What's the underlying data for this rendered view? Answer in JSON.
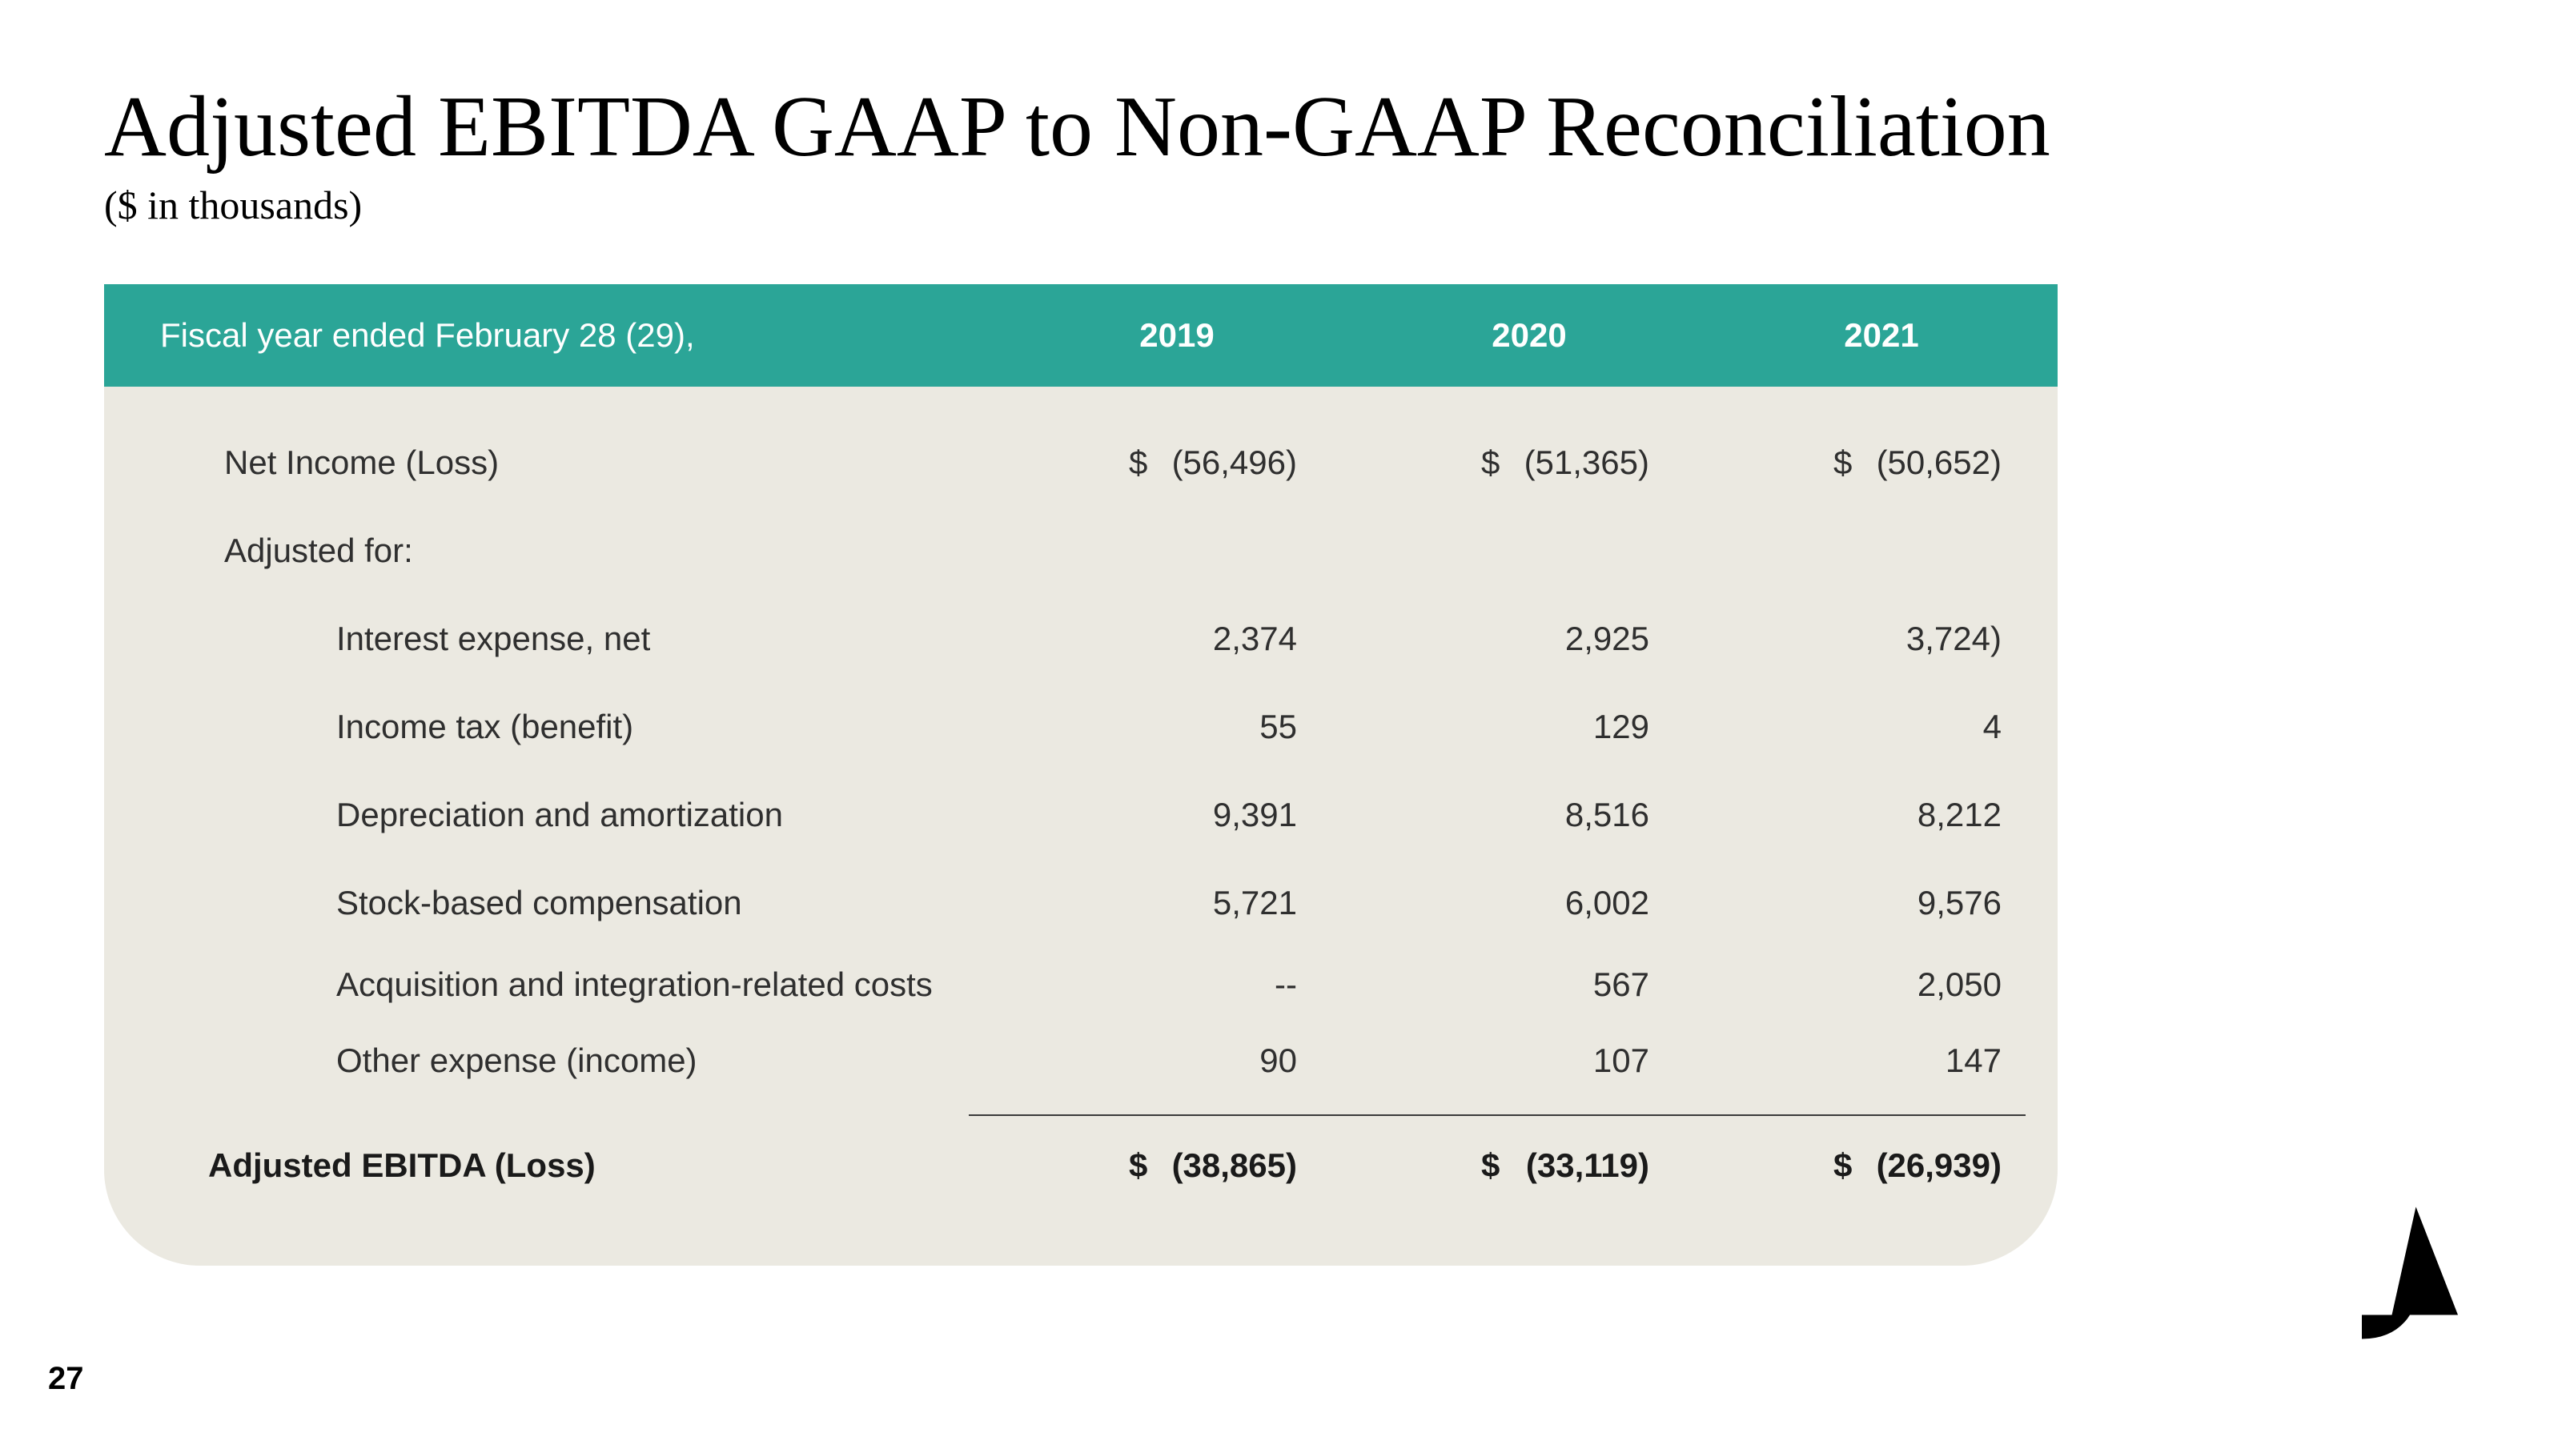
{
  "slide": {
    "title": "Adjusted EBITDA GAAP to Non-GAAP Reconciliation",
    "subtitle": "($ in thousands)",
    "page_number": "27"
  },
  "table": {
    "header_bg": "#2ba597",
    "body_bg": "#ebe9e1",
    "header_label": "Fiscal year ended February 28 (29),",
    "years": [
      "2019",
      "2020",
      "2021"
    ],
    "rows": [
      {
        "label": "Net Income (Loss)",
        "indent": 1,
        "dollar": true,
        "values": [
          "(56,496)",
          "(51,365)",
          "(50,652)"
        ]
      },
      {
        "label": "Adjusted for:",
        "indent": 1,
        "values": [
          "",
          "",
          ""
        ]
      },
      {
        "label": "Interest expense, net",
        "indent": 2,
        "values": [
          "2,374",
          "2,925",
          "3,724)"
        ]
      },
      {
        "label": "Income tax (benefit)",
        "indent": 2,
        "values": [
          "55",
          "129",
          "4"
        ]
      },
      {
        "label": "Depreciation and amortization",
        "indent": 2,
        "values": [
          "9,391",
          "8,516",
          "8,212"
        ]
      },
      {
        "label": "Stock-based compensation",
        "indent": 2,
        "values": [
          "5,721",
          "6,002",
          "9,576"
        ]
      },
      {
        "label": "Acquisition and integration-related costs",
        "indent": 2,
        "values": [
          "--",
          "567",
          "2,050"
        ]
      },
      {
        "label": "Other expense (income)",
        "indent": 2,
        "values": [
          "90",
          "107",
          "147"
        ]
      }
    ],
    "total": {
      "label": "Adjusted EBITDA (Loss)",
      "dollar": true,
      "values": [
        "(38,865)",
        "(33,119)",
        "(26,939)"
      ]
    }
  },
  "logo": {
    "fill": "#000000"
  },
  "fonts": {
    "title_family": "Georgia, serif",
    "title_size_pt": 81,
    "subtitle_size_pt": 38,
    "body_size_pt": 32
  },
  "colors": {
    "background": "#ffffff",
    "text": "#2f2f2f",
    "header_text": "#ffffff"
  }
}
